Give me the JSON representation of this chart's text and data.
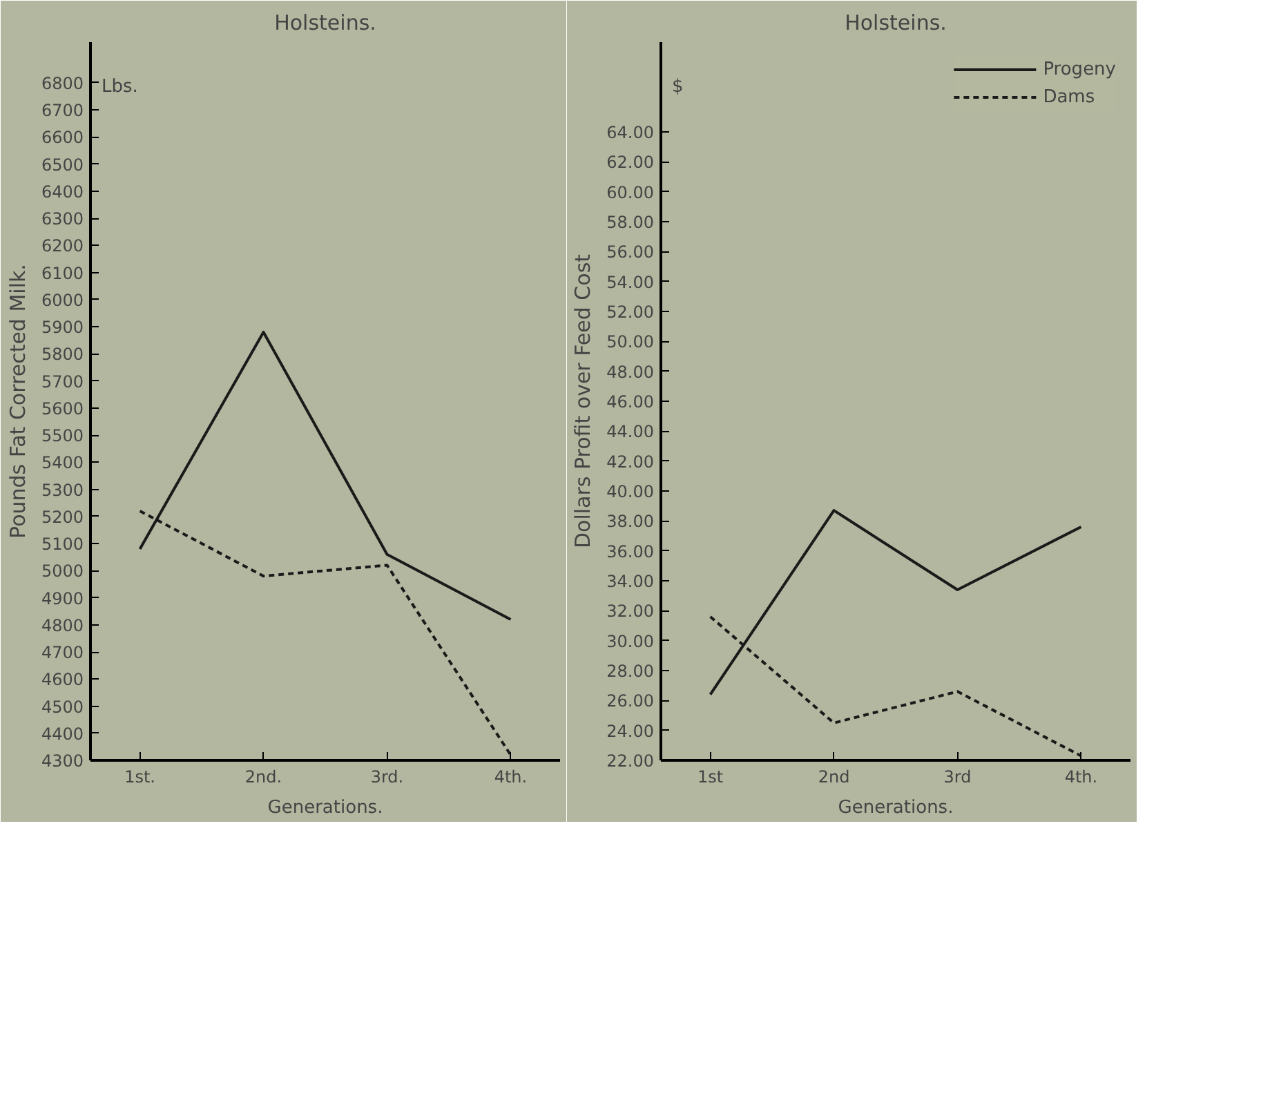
{
  "chart_data": [
    {
      "type": "line",
      "title": "Holsteins.",
      "xlabel": "Generations.",
      "ylabel": "Pounds Fat Corrected Milk.",
      "annotations": [
        "Lbs."
      ],
      "categories": [
        "1st.",
        "2nd.",
        "3rd.",
        "4th."
      ],
      "series": [
        {
          "color": "#1a1a1a",
          "line_style": "solid",
          "values": [
            5080,
            5880,
            5060,
            4820
          ]
        },
        {
          "color": "#1a1a1a",
          "line_style": "dashed",
          "values": [
            5220,
            4980,
            5020,
            4320
          ]
        }
      ],
      "ylim": [
        4300,
        6950
      ],
      "yticks": [
        4300,
        4400,
        4500,
        4600,
        4700,
        4800,
        4900,
        5000,
        5100,
        5200,
        5300,
        5400,
        5500,
        5600,
        5700,
        5800,
        5900,
        6000,
        6100,
        6200,
        6300,
        6400,
        6500,
        6600,
        6700,
        6800
      ],
      "grid": false,
      "legend": false,
      "marker": "none"
    },
    {
      "type": "line",
      "title": "Holsteins.",
      "xlabel": "Generations.",
      "ylabel": "Dollars Profit over Feed Cost",
      "annotations": [
        "$"
      ],
      "categories": [
        "1st",
        "2nd",
        "3rd",
        "4th."
      ],
      "series": [
        {
          "name": "Progeny",
          "color": "#1a1a1a",
          "line_style": "solid",
          "values": [
            26.4,
            38.7,
            33.4,
            37.6
          ]
        },
        {
          "name": "Dams",
          "color": "#1a1a1a",
          "line_style": "dashed",
          "values": [
            31.6,
            24.5,
            26.6,
            22.3
          ]
        }
      ],
      "ylim": [
        22,
        70
      ],
      "yticks": [
        {
          "value": 22,
          "label": "22.00"
        },
        {
          "value": 24,
          "label": "24.00"
        },
        {
          "value": 26,
          "label": "26.00"
        },
        {
          "value": 28,
          "label": "28.00"
        },
        {
          "value": 30,
          "label": "30.00"
        },
        {
          "value": 32,
          "label": "32.00"
        },
        {
          "value": 34,
          "label": "34.00"
        },
        {
          "value": 36,
          "label": "36.00"
        },
        {
          "value": 38,
          "label": "38.00"
        },
        {
          "value": 40,
          "label": "40.00"
        },
        {
          "value": 42,
          "label": "42.00"
        },
        {
          "value": 44,
          "label": "44.00"
        },
        {
          "value": 46,
          "label": "46.00"
        },
        {
          "value": 48,
          "label": "48.00"
        },
        {
          "value": 50,
          "label": "50.00"
        },
        {
          "value": 52,
          "label": "52.00"
        },
        {
          "value": 54,
          "label": "54.00"
        },
        {
          "value": 56,
          "label": "56.00"
        },
        {
          "value": 58,
          "label": "58.00"
        },
        {
          "value": 60,
          "label": "60.00"
        },
        {
          "value": 62,
          "label": "62.00"
        },
        {
          "value": 64,
          "label": "64.00"
        }
      ],
      "grid": false,
      "legend": "top right",
      "marker": "none"
    }
  ]
}
